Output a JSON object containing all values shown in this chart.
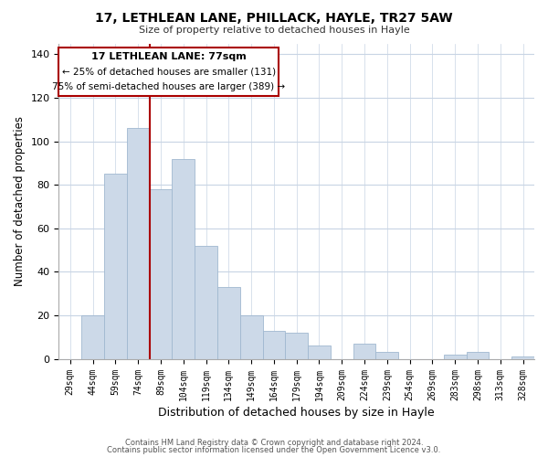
{
  "title": "17, LETHLEAN LANE, PHILLACK, HAYLE, TR27 5AW",
  "subtitle": "Size of property relative to detached houses in Hayle",
  "xlabel": "Distribution of detached houses by size in Hayle",
  "ylabel": "Number of detached properties",
  "bar_color": "#ccd9e8",
  "bar_edge_color": "#a0b8d0",
  "categories": [
    "29sqm",
    "44sqm",
    "59sqm",
    "74sqm",
    "89sqm",
    "104sqm",
    "119sqm",
    "134sqm",
    "149sqm",
    "164sqm",
    "179sqm",
    "194sqm",
    "209sqm",
    "224sqm",
    "239sqm",
    "254sqm",
    "269sqm",
    "283sqm",
    "298sqm",
    "313sqm",
    "328sqm"
  ],
  "values": [
    0,
    20,
    85,
    106,
    78,
    92,
    52,
    33,
    20,
    13,
    12,
    6,
    0,
    7,
    3,
    0,
    0,
    2,
    3,
    0,
    1
  ],
  "ylim": [
    0,
    145
  ],
  "yticks": [
    0,
    20,
    40,
    60,
    80,
    100,
    120,
    140
  ],
  "marker_index": 3,
  "marker_color": "#aa0000",
  "annotation_title": "17 LETHLEAN LANE: 77sqm",
  "annotation_line1": "← 25% of detached houses are smaller (131)",
  "annotation_line2": "75% of semi-detached houses are larger (389) →",
  "footer1": "Contains HM Land Registry data © Crown copyright and database right 2024.",
  "footer2": "Contains public sector information licensed under the Open Government Licence v3.0.",
  "background_color": "#ffffff",
  "plot_background": "#ffffff",
  "grid_color": "#c8d4e4"
}
